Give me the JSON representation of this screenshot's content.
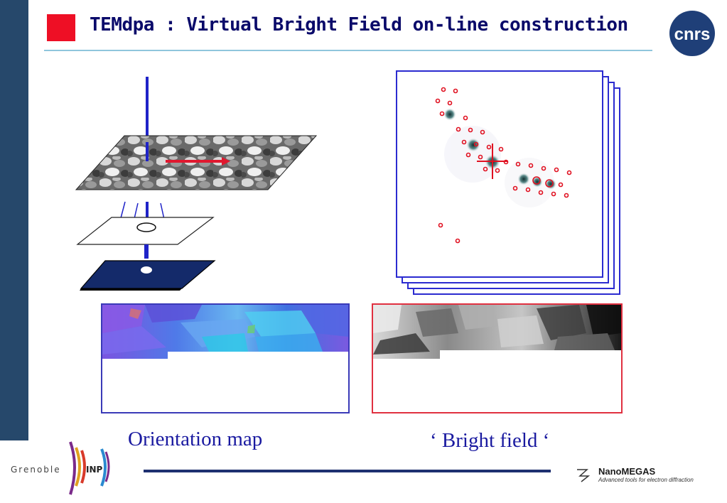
{
  "slide": {
    "title": "TEMdpa : Virtual Bright Field on-line construction"
  },
  "captions": {
    "orientation_map": "Orientation map",
    "bright_field": "‘ Bright field ‘"
  },
  "logos": {
    "cnrs": "CNRS",
    "cnrs_text": "cnrs",
    "grenoble_text": "Grenoble",
    "grenoble_inp": "INP",
    "nanomegas_name": "NanoMEGAS",
    "nanomegas_tagline": "Advanced tools for electron diffraction"
  },
  "colors": {
    "sidebar": "#26486b",
    "title_square": "#ee0f25",
    "title_text": "#0a0a6a",
    "caption_text": "#1a1aa0",
    "map_border": "#3a3ab8",
    "bright_field_border": "#e03040",
    "beam": "#1f23c8",
    "scan_arrow": "#e0182f"
  },
  "icons": {
    "title_marker": "red-square-icon",
    "scan_direction": "red-arrow-icon"
  }
}
